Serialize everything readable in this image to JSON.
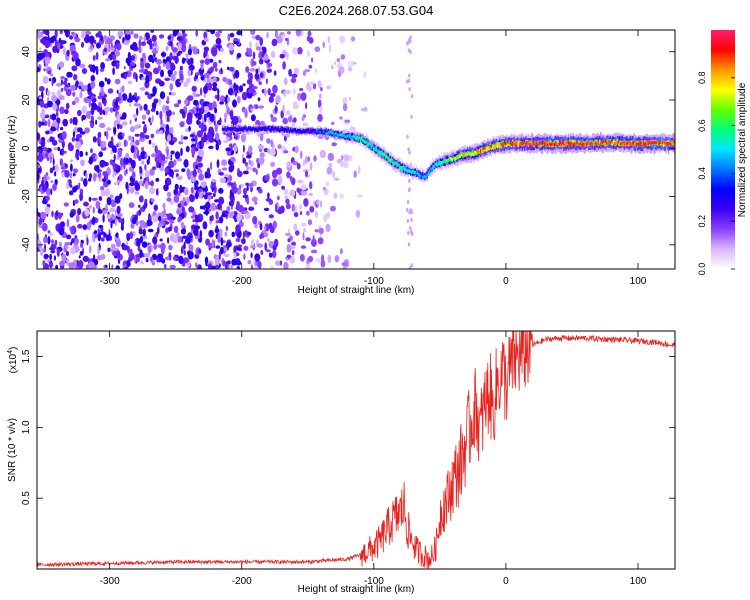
{
  "figure": {
    "title": "C2E6.2024.268.07.53.G04"
  },
  "chart_data": [
    {
      "type": "heatmap",
      "name": "spectrogram",
      "xlabel": "Height of straight line (km)",
      "ylabel": "Frequency (Hz)",
      "xlim": [
        -355,
        128
      ],
      "ylim": [
        -50,
        49
      ],
      "xticks": [
        -300,
        -200,
        -100,
        0,
        100
      ],
      "yticks": [
        -40,
        -20,
        0,
        20,
        40
      ],
      "colorbar": {
        "label": "Normalized spectral amplitude",
        "range": [
          0,
          1
        ],
        "ticks": [
          0.0,
          0.2,
          0.4,
          0.6,
          0.8
        ],
        "colors": [
          "#ffffff",
          "#d9b8ff",
          "#8a3cff",
          "#3a00f0",
          "#0000ff",
          "#0078ff",
          "#00e6ff",
          "#00ff78",
          "#64ff00",
          "#ffff00",
          "#ff9600",
          "#ff0000",
          "#ff1e6e"
        ]
      },
      "signal_track": {
        "x": [
          -215,
          -195,
          -175,
          -155,
          -150,
          -140,
          -130,
          -120,
          -110,
          -100,
          -90,
          -80,
          -70,
          -62,
          -55,
          -45,
          -35,
          -25,
          -15,
          -5,
          0,
          20,
          40,
          60,
          80,
          100,
          128
        ],
        "freq": [
          8,
          8,
          8,
          7,
          7,
          7,
          6,
          5,
          4,
          0,
          -4,
          -8,
          -10,
          -12,
          -7,
          -5,
          -3,
          -2,
          0,
          1.5,
          2,
          2,
          2,
          2,
          2.5,
          2,
          2
        ],
        "amplitude": [
          0.25,
          0.3,
          0.3,
          0.3,
          0.3,
          0.4,
          0.45,
          0.5,
          0.55,
          0.55,
          0.6,
          0.6,
          0.5,
          0.45,
          0.55,
          0.65,
          0.75,
          0.8,
          0.85,
          0.85,
          0.9,
          0.95,
          0.95,
          0.95,
          0.9,
          0.95,
          0.95
        ]
      },
      "noise": {
        "xrange": [
          -355,
          -120
        ],
        "density": "high below -210 km, fading toward -110 km"
      }
    },
    {
      "type": "line",
      "name": "snr",
      "xlabel": "Height of straight line (km)",
      "ylabel": "SNR (10 * v/v)",
      "scale_label": "(x10",
      "scale_exponent": "4",
      "scale_suffix": ")",
      "xlim": [
        -355,
        128
      ],
      "ylim": [
        0,
        1.68
      ],
      "xticks": [
        -300,
        -200,
        -100,
        0,
        100
      ],
      "yticks": [
        0.5,
        1.0,
        1.5
      ],
      "color": "#e8231f",
      "series": [
        {
          "x": [
            -355,
            -300,
            -250,
            -200,
            -150,
            -120,
            -110,
            -100,
            -95,
            -90,
            -85,
            -80,
            -77,
            -75,
            -72,
            -68,
            -63,
            -58,
            -55,
            -52,
            -50,
            -47,
            -44,
            -40,
            -35,
            -30,
            -27,
            -25,
            -22,
            -20,
            -17,
            -15,
            -12,
            -10,
            -7,
            -5,
            -2,
            0,
            3,
            6,
            10,
            15,
            20,
            25,
            30,
            40,
            60,
            80,
            100,
            115,
            125,
            128
          ],
          "y": [
            0.03,
            0.04,
            0.05,
            0.05,
            0.05,
            0.07,
            0.1,
            0.15,
            0.2,
            0.28,
            0.35,
            0.4,
            0.45,
            0.3,
            0.22,
            0.14,
            0.1,
            0.07,
            0.1,
            0.2,
            0.38,
            0.45,
            0.5,
            0.62,
            0.72,
            0.9,
            1.0,
            1.1,
            1.15,
            0.95,
            1.1,
            1.2,
            1.25,
            1.1,
            1.3,
            1.35,
            1.4,
            1.28,
            1.4,
            1.48,
            1.5,
            1.55,
            1.58,
            1.6,
            1.62,
            1.63,
            1.63,
            1.62,
            1.61,
            1.6,
            1.58,
            1.58
          ]
        }
      ]
    }
  ]
}
